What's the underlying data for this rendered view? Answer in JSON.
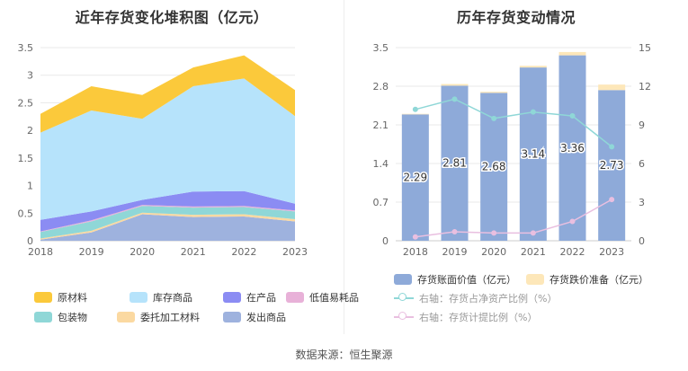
{
  "titles": {
    "left": "近年存货变化堆积图（亿元）",
    "right": "历年存货变动情况"
  },
  "source": "数据来源：恒生聚源",
  "colors": {
    "原材料": "#fbc93b",
    "库存商品": "#b6e3fb",
    "在产品": "#8b8cf3",
    "低值易耗品": "#e8b1d8",
    "包装物": "#8fd7d7",
    "委托加工材料": "#fbd9a1",
    "发出商品": "#9eb2de",
    "bar": "#8eaad9",
    "bar_cap": "#fde7b9",
    "line1": "#8fd7d7",
    "line2": "#e9bfe0"
  },
  "chart_data": [
    {
      "type": "area",
      "title": "近年存货变化堆积图（亿元）",
      "x": [
        "2018",
        "2019",
        "2020",
        "2021",
        "2022",
        "2023"
      ],
      "ylim": [
        0,
        3.5
      ],
      "yticks": [
        "0",
        "0.5",
        "1",
        "1.5",
        "2",
        "2.5",
        "3",
        "3.5"
      ],
      "stack_order_bottom_to_top": [
        "发出商品",
        "委托加工材料",
        "包装物",
        "低值易耗品",
        "在产品",
        "库存商品",
        "原材料"
      ],
      "series": [
        {
          "name": "发出商品",
          "values": [
            0.02,
            0.15,
            0.48,
            0.43,
            0.44,
            0.35
          ]
        },
        {
          "name": "委托加工材料",
          "values": [
            0.02,
            0.03,
            0.03,
            0.04,
            0.04,
            0.04
          ]
        },
        {
          "name": "包装物",
          "values": [
            0.12,
            0.17,
            0.12,
            0.13,
            0.13,
            0.14
          ]
        },
        {
          "name": "低值易耗品",
          "values": [
            0.01,
            0.02,
            0.02,
            0.02,
            0.02,
            0.02
          ]
        },
        {
          "name": "在产品",
          "values": [
            0.21,
            0.16,
            0.09,
            0.27,
            0.27,
            0.12
          ]
        },
        {
          "name": "库存商品",
          "values": [
            1.58,
            1.83,
            1.47,
            1.91,
            2.04,
            1.59
          ]
        },
        {
          "name": "原材料",
          "values": [
            0.34,
            0.44,
            0.43,
            0.34,
            0.42,
            0.47
          ]
        }
      ],
      "legend": [
        "原材料",
        "库存商品",
        "在产品",
        "低值易耗品",
        "包装物",
        "委托加工材料",
        "发出商品"
      ],
      "legend_position": "bottom"
    },
    {
      "type": "bar",
      "title": "历年存货变动情况",
      "x": [
        "2018",
        "2019",
        "2020",
        "2021",
        "2022",
        "2023"
      ],
      "ylim_left": [
        0,
        3.5
      ],
      "yticks_left": [
        "0",
        "0.7",
        "1.4",
        "2.1",
        "2.8",
        "3.5"
      ],
      "ylim_right": [
        0,
        15
      ],
      "yticks_right": [
        "0",
        "3",
        "6",
        "9",
        "12",
        "15"
      ],
      "series": [
        {
          "name": "存货账面价值（亿元）",
          "axis": "left",
          "values": [
            2.29,
            2.81,
            2.68,
            3.14,
            3.36,
            2.73
          ],
          "labels": [
            "2.29",
            "2.81",
            "2.68",
            "3.14",
            "3.36",
            "2.73"
          ]
        },
        {
          "name": "存货跌价准备（亿元）",
          "axis": "left",
          "values": [
            0.01,
            0.03,
            0.02,
            0.03,
            0.06,
            0.1
          ]
        },
        {
          "name": "右轴：存货占净资产比例（%）",
          "axis": "right",
          "type": "line",
          "values": [
            10.2,
            11.0,
            9.5,
            10.0,
            9.7,
            7.3
          ]
        },
        {
          "name": "右轴：存货计提比例（%）",
          "axis": "right",
          "type": "line",
          "values": [
            0.3,
            0.7,
            0.6,
            0.6,
            1.5,
            3.2
          ]
        }
      ],
      "legend_position": "bottom"
    }
  ],
  "legends": {
    "left": [
      "原材料",
      "库存商品",
      "在产品",
      "低值易耗品",
      "包装物",
      "委托加工材料",
      "发出商品"
    ],
    "right": [
      "存货账面价值（亿元）",
      "存货跌价准备（亿元）",
      "右轴：存货占净资产比例（%）",
      "右轴：存货计提比例（%）"
    ]
  }
}
